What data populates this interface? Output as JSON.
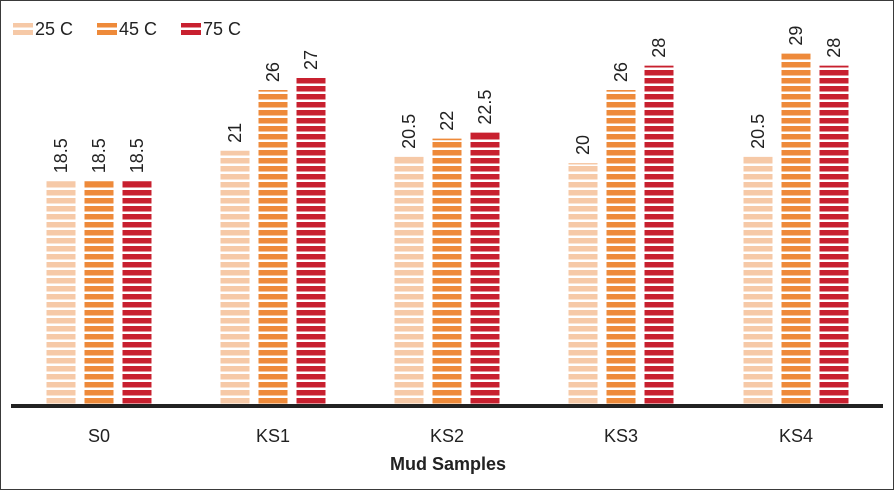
{
  "chart_data": {
    "type": "bar",
    "categories": [
      "S0",
      "KS1",
      "KS2",
      "KS3",
      "KS4"
    ],
    "series": [
      {
        "name": "25 C",
        "color": "#F6C9A7",
        "values": [
          18.5,
          21,
          20.5,
          20,
          20.5
        ],
        "labels": [
          "18.5",
          "21",
          "20.5",
          "20",
          "20.5"
        ]
      },
      {
        "name": "45 C",
        "color": "#EE8A3A",
        "values": [
          18.5,
          26,
          22,
          26,
          29
        ],
        "labels": [
          "18.5",
          "26",
          "22",
          "26",
          "29"
        ]
      },
      {
        "name": "75 C",
        "color": "#C8202F",
        "values": [
          18.5,
          27,
          22.5,
          28,
          28
        ],
        "labels": [
          "18.5",
          "27",
          "22.5",
          "28",
          "28"
        ]
      }
    ],
    "title": "",
    "xlabel": "Mud Samples",
    "ylabel": "",
    "ylim": [
      0,
      30
    ],
    "grid": false,
    "legend_position": "top-left",
    "bar_pattern": "horizontal-stripes"
  }
}
